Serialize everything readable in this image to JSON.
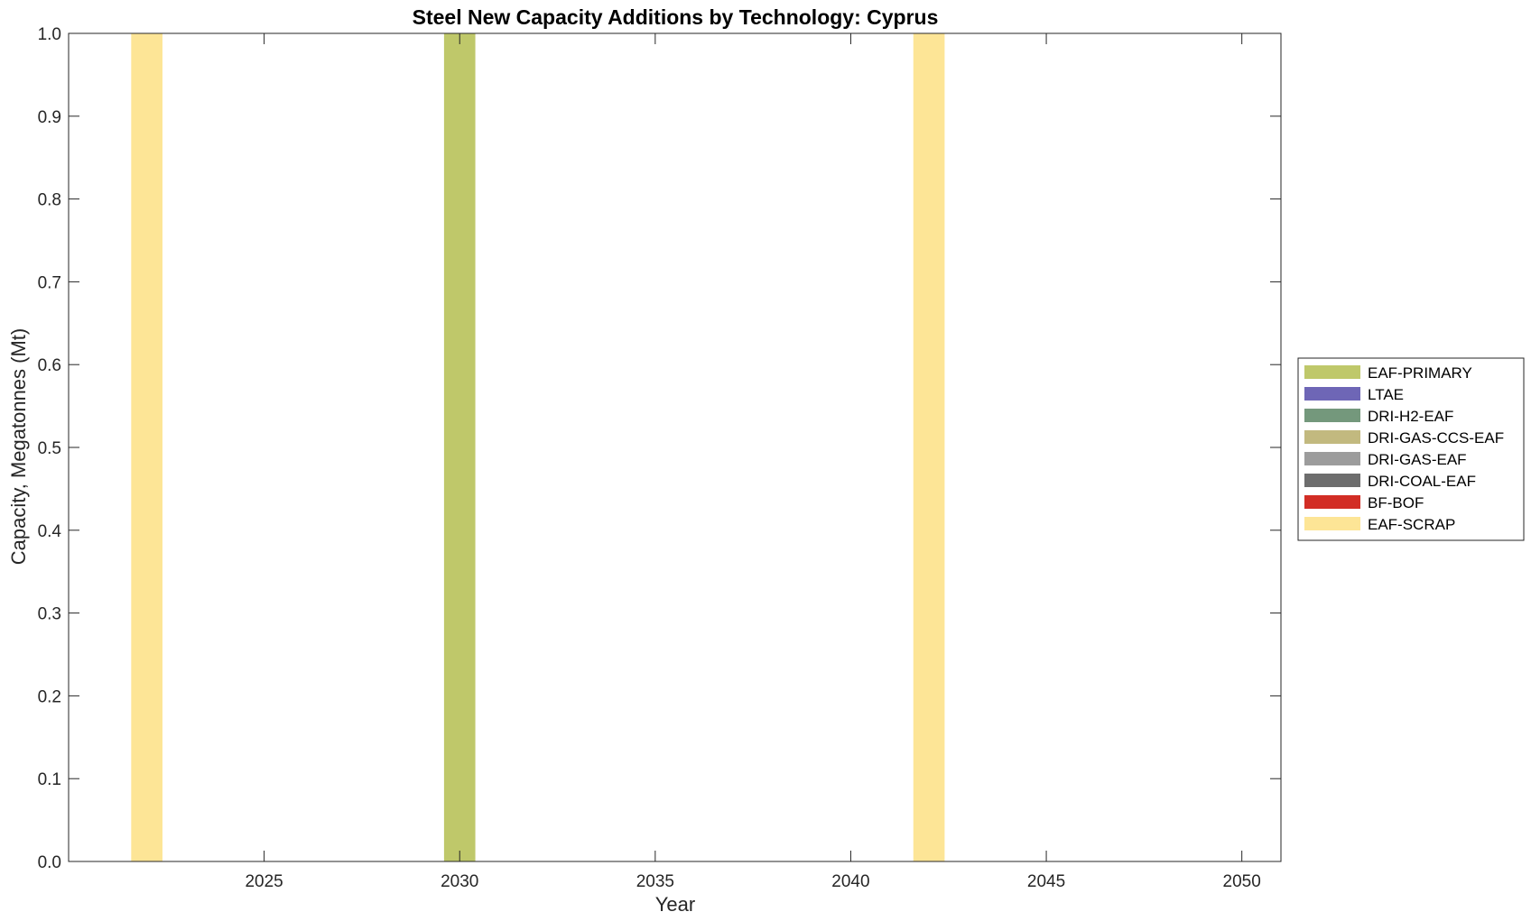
{
  "chart_data": {
    "type": "bar",
    "title": "Steel New Capacity Additions by Technology: Cyprus",
    "xlabel": "Year",
    "ylabel": "Capacity, Megatonnes (Mt)",
    "xlim": [
      2020,
      2051
    ],
    "ylim": [
      0,
      1
    ],
    "x_ticks": [
      2025,
      2030,
      2035,
      2040,
      2045,
      2050
    ],
    "y_ticks": [
      "0.0",
      "0.1",
      "0.2",
      "0.3",
      "0.4",
      "0.5",
      "0.6",
      "0.7",
      "0.8",
      "0.9",
      "1.0"
    ],
    "grid": false,
    "legend_position": "right",
    "series": [
      {
        "name": "EAF-PRIMARY",
        "color": "#bfc86a",
        "points": [
          {
            "x": 2030,
            "y": 1.0
          }
        ]
      },
      {
        "name": "LTAE",
        "color": "#6e66b6",
        "points": []
      },
      {
        "name": "DRI-H2-EAF",
        "color": "#74987c",
        "points": []
      },
      {
        "name": "DRI-GAS-CCS-EAF",
        "color": "#c2b97f",
        "points": []
      },
      {
        "name": "DRI-GAS-EAF",
        "color": "#9c9c9c",
        "points": []
      },
      {
        "name": "DRI-COAL-EAF",
        "color": "#6d6d6d",
        "points": []
      },
      {
        "name": "BF-BOF",
        "color": "#d22d25",
        "points": []
      },
      {
        "name": "EAF-SCRAP",
        "color": "#fde596",
        "points": [
          {
            "x": 2022,
            "y": 1.0
          },
          {
            "x": 2042,
            "y": 1.0
          }
        ]
      }
    ]
  }
}
